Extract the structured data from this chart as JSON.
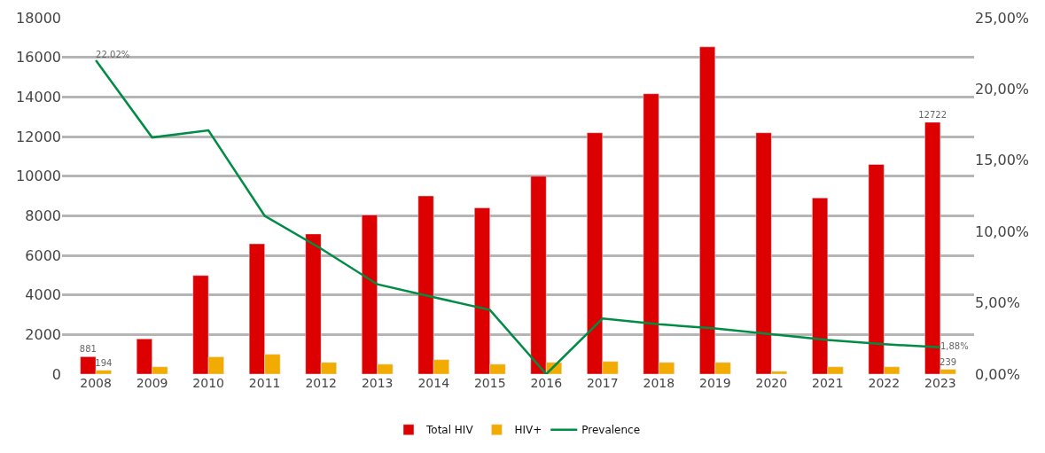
{
  "chart_data": {
    "type": "bar",
    "categories": [
      "2008",
      "2009",
      "2010",
      "2011",
      "2012",
      "2013",
      "2014",
      "2015",
      "2016",
      "2017",
      "2018",
      "2019",
      "2020",
      "2021",
      "2022",
      "2023"
    ],
    "series": [
      {
        "name": "Total HIV",
        "color": "#dd0000",
        "values": [
          881,
          1780,
          4980,
          6580,
          7080,
          8040,
          9000,
          8400,
          10000,
          12190,
          14160,
          16530,
          12190,
          8900,
          10590,
          12722
        ],
        "value_labels": [
          "881",
          null,
          null,
          null,
          null,
          null,
          null,
          null,
          null,
          null,
          null,
          null,
          null,
          null,
          null,
          "12722"
        ]
      },
      {
        "name": "HIV+",
        "color": "#f2ab00",
        "values": [
          194,
          370,
          870,
          1000,
          590,
          500,
          730,
          500,
          590,
          640,
          590,
          590,
          140,
          370,
          370,
          239
        ],
        "value_labels": [
          "194",
          null,
          null,
          null,
          null,
          null,
          null,
          null,
          null,
          null,
          null,
          null,
          null,
          null,
          null,
          "239"
        ]
      },
      {
        "name": "Prevalence",
        "type": "line",
        "axis": "y2",
        "color": "#008c44",
        "values": [
          22.02,
          16.6,
          17.1,
          11.1,
          8.8,
          6.3,
          5.4,
          4.5,
          0.0,
          3.9,
          3.5,
          3.2,
          2.8,
          2.4,
          2.1,
          1.88
        ],
        "value_labels": [
          "22.02%",
          null,
          null,
          null,
          null,
          null,
          null,
          null,
          null,
          null,
          null,
          null,
          null,
          null,
          null,
          "1,88%"
        ]
      }
    ],
    "ylim": [
      0,
      18000
    ],
    "yticks": [
      0,
      2000,
      4000,
      6000,
      8000,
      10000,
      12000,
      14000,
      16000,
      18000
    ],
    "y2lim": [
      0,
      25
    ],
    "y2ticks": [
      {
        "value": 0,
        "label": "0,00%"
      },
      {
        "value": 5,
        "label": "5,00%"
      },
      {
        "value": 10,
        "label": "10,00%"
      },
      {
        "value": 15,
        "label": "15,00%"
      },
      {
        "value": 20,
        "label": "20,00%"
      },
      {
        "value": 25,
        "label": "25,00%"
      }
    ],
    "grid": "y",
    "legend": "bottom",
    "marker": "none",
    "line_style": "solid"
  }
}
